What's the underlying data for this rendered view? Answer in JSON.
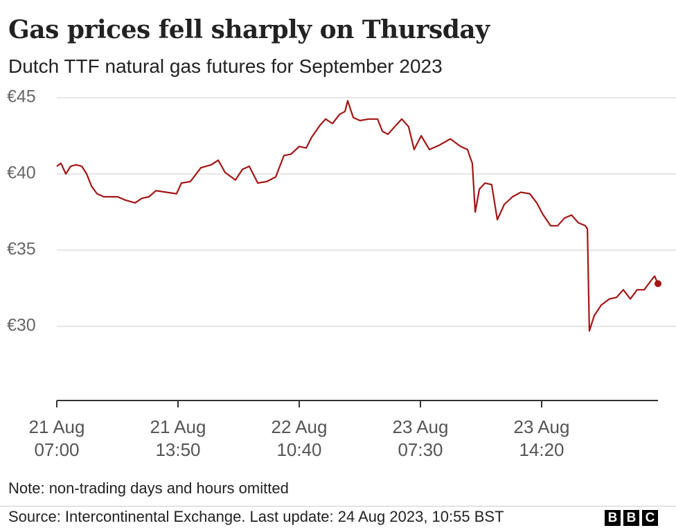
{
  "chart_data": {
    "type": "line",
    "title": "Gas prices fell sharply on Thursday",
    "subtitle": "Dutch TTF natural gas futures for September 2023",
    "note": "Note: non-trading days and hours omitted",
    "source": "Source: Intercontinental Exchange. Last update: 24 Aug 2023, 10:55 BST",
    "logo": [
      "B",
      "B",
      "C"
    ],
    "color": "#a31515",
    "grid": true,
    "xlim": [
      0,
      248
    ],
    "ylim": [
      25,
      45
    ],
    "yticks": [
      {
        "value": 30,
        "label": "€30"
      },
      {
        "value": 35,
        "label": "€35"
      },
      {
        "value": 40,
        "label": "€40"
      },
      {
        "value": 45,
        "label": "€45"
      }
    ],
    "xticks": [
      {
        "value": 0,
        "label": "21 Aug 07:00"
      },
      {
        "value": 50,
        "label": "21 Aug 13:50"
      },
      {
        "value": 100,
        "label": "22 Aug 10:40"
      },
      {
        "value": 150,
        "label": "23 Aug 07:30"
      },
      {
        "value": 200,
        "label": "23 Aug 14:20"
      }
    ],
    "x": [
      0,
      1.7,
      3.7,
      5.7,
      8,
      10.3,
      12.3,
      14.3,
      16.6,
      19.4,
      22.3,
      25.1,
      28,
      32.3,
      35.1,
      38,
      40.9,
      45.1,
      49.4,
      51.4,
      55.1,
      59.4,
      63.7,
      66.6,
      69.4,
      73.7,
      76.6,
      79.4,
      82.9,
      86.6,
      90.3,
      93.7,
      96.6,
      100,
      102.9,
      105.1,
      108.6,
      110.9,
      113.7,
      116.6,
      118.9,
      120,
      122.3,
      125.1,
      128.6,
      132.3,
      134.3,
      136.6,
      139.4,
      142.3,
      145.1,
      147.4,
      150.3,
      153.7,
      158,
      162.3,
      166.6,
      169.4,
      171.4,
      172.6,
      174.3,
      176.6,
      179.4,
      181.7,
      184.6,
      188,
      191.4,
      195.1,
      198,
      200.3,
      203.7,
      206.6,
      209.4,
      212.3,
      215.1,
      218,
      218.9,
      219.7,
      221.7,
      224.6,
      228,
      230.9,
      233.7,
      236.6,
      239.4,
      242.3,
      245.1,
      246.6,
      248
    ],
    "values": [
      40.5,
      40.7,
      40.0,
      40.5,
      40.6,
      40.5,
      40.0,
      39.2,
      38.7,
      38.5,
      38.5,
      38.5,
      38.3,
      38.1,
      38.4,
      38.5,
      38.9,
      38.8,
      38.7,
      39.4,
      39.5,
      40.4,
      40.6,
      40.9,
      40.1,
      39.6,
      40.3,
      40.5,
      39.4,
      39.5,
      39.8,
      41.2,
      41.3,
      41.8,
      41.7,
      42.4,
      43.2,
      43.6,
      43.3,
      43.9,
      44.1,
      44.8,
      43.7,
      43.5,
      43.6,
      43.6,
      42.8,
      42.6,
      43.1,
      43.6,
      43.1,
      41.6,
      42.5,
      41.6,
      41.9,
      42.3,
      41.8,
      41.6,
      40.7,
      37.5,
      39.0,
      39.4,
      39.3,
      37.0,
      38.0,
      38.5,
      38.8,
      38.7,
      38.1,
      37.4,
      36.6,
      36.6,
      37.1,
      37.3,
      36.8,
      36.6,
      36.4,
      29.7,
      30.7,
      31.4,
      31.8,
      31.9,
      32.4,
      31.8,
      32.4,
      32.4,
      33.0,
      33.3,
      32.8
    ]
  }
}
